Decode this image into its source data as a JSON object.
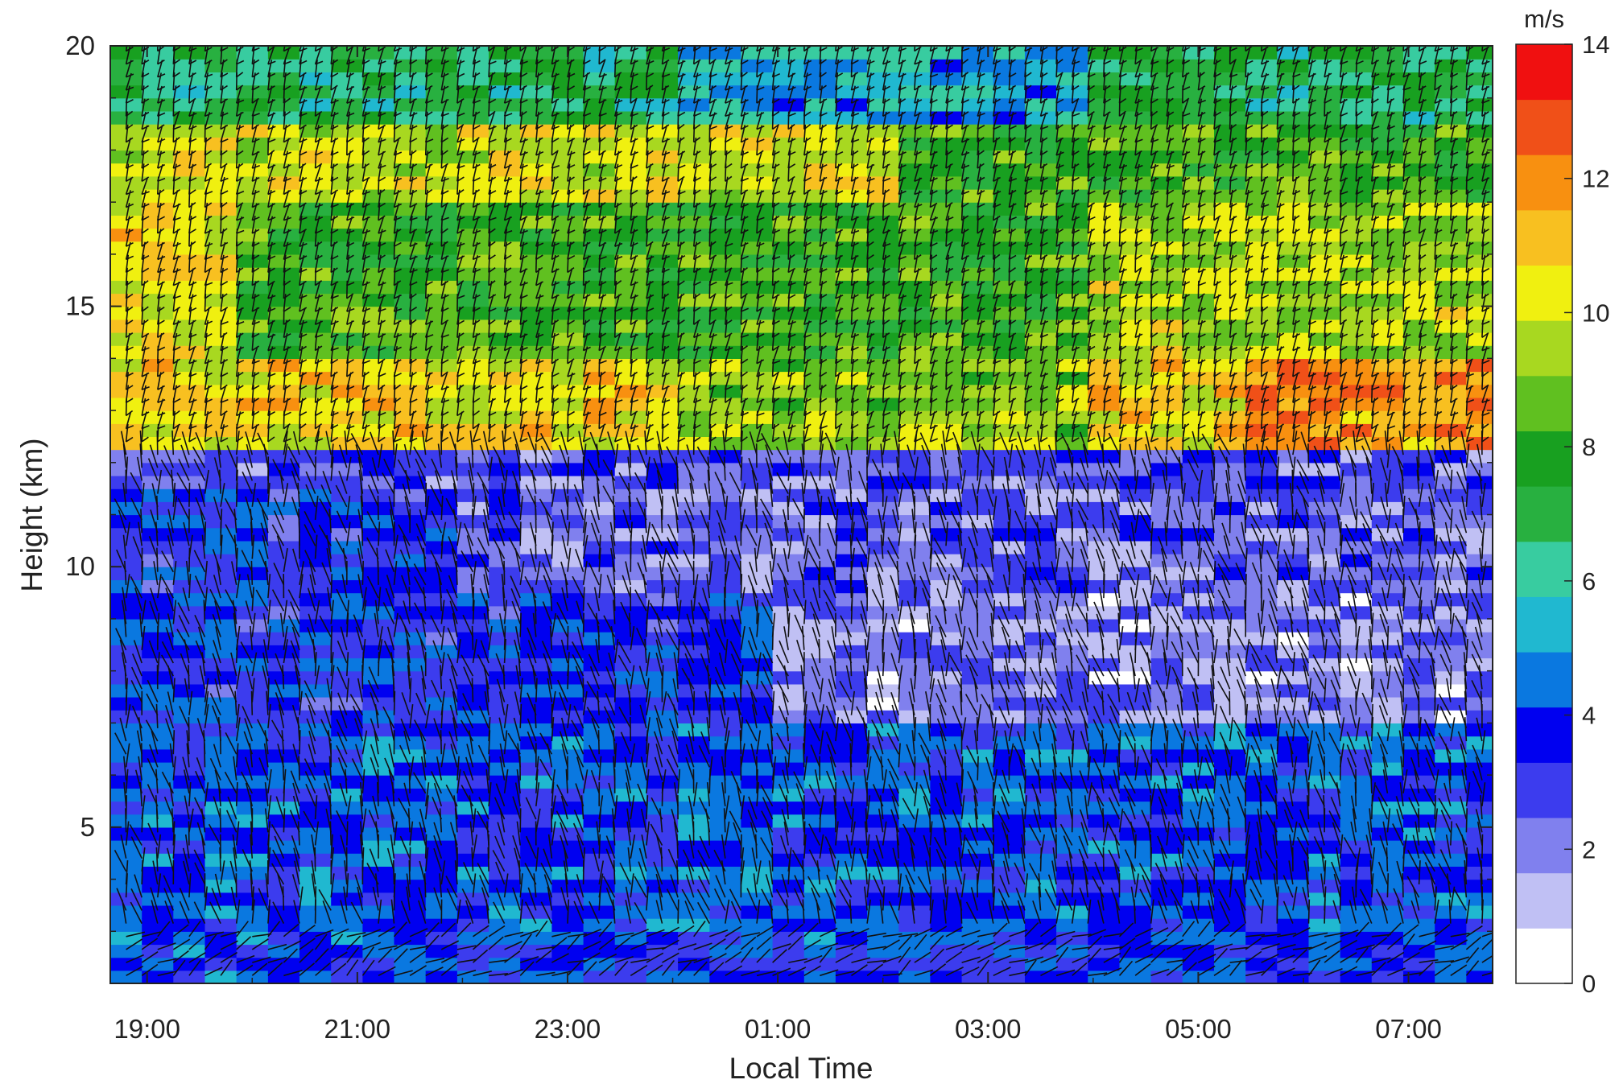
{
  "chart_data": {
    "type": "heatmap",
    "title": "",
    "xlabel": "Local Time",
    "ylabel": "Height (km)",
    "x_tick_labels": [
      "19:00",
      "21:00",
      "23:00",
      "01:00",
      "03:00",
      "05:00",
      "07:00"
    ],
    "x_ticks_hours_since_1900_start": [
      0,
      2,
      4,
      6,
      8,
      10,
      12
    ],
    "xlim_hours_after_1900": [
      -0.35,
      12.8
    ],
    "y_ticks": [
      5,
      10,
      15,
      20
    ],
    "ylim": [
      2,
      20
    ],
    "grid": false,
    "colorbar": {
      "unit_label": "m/s",
      "ticks": [
        0,
        2,
        4,
        6,
        8,
        10,
        12,
        14
      ],
      "range": [
        0,
        14
      ],
      "colormap": [
        "#ffffff",
        "#c0c0f4",
        "#8080ee",
        "#3c3cee",
        "#0000f0",
        "#0a78e0",
        "#20b8d0",
        "#38cca0",
        "#28b040",
        "#18a020",
        "#60c020",
        "#a8d820",
        "#f0f010",
        "#f8c020",
        "#f89010",
        "#f05018",
        "#f01010"
      ]
    },
    "wind_speed_summary": [
      {
        "layer_km": [
          2,
          3
        ],
        "typical_speed_ms": 3.5
      },
      {
        "layer_km": [
          3,
          9
        ],
        "typical_speed_ms": 3.5
      },
      {
        "layer_km": [
          7,
          11
        ],
        "typical_speed_ms": 1.5
      },
      {
        "layer_km": [
          12,
          14
        ],
        "typical_speed_ms": 11.5
      },
      {
        "layer_km": [
          14,
          17
        ],
        "typical_speed_ms": 8.5
      },
      {
        "layer_km": [
          17,
          18.5
        ],
        "typical_speed_ms": 10.5
      },
      {
        "layer_km": [
          18.5,
          20
        ],
        "typical_speed_ms": 7
      }
    ]
  }
}
